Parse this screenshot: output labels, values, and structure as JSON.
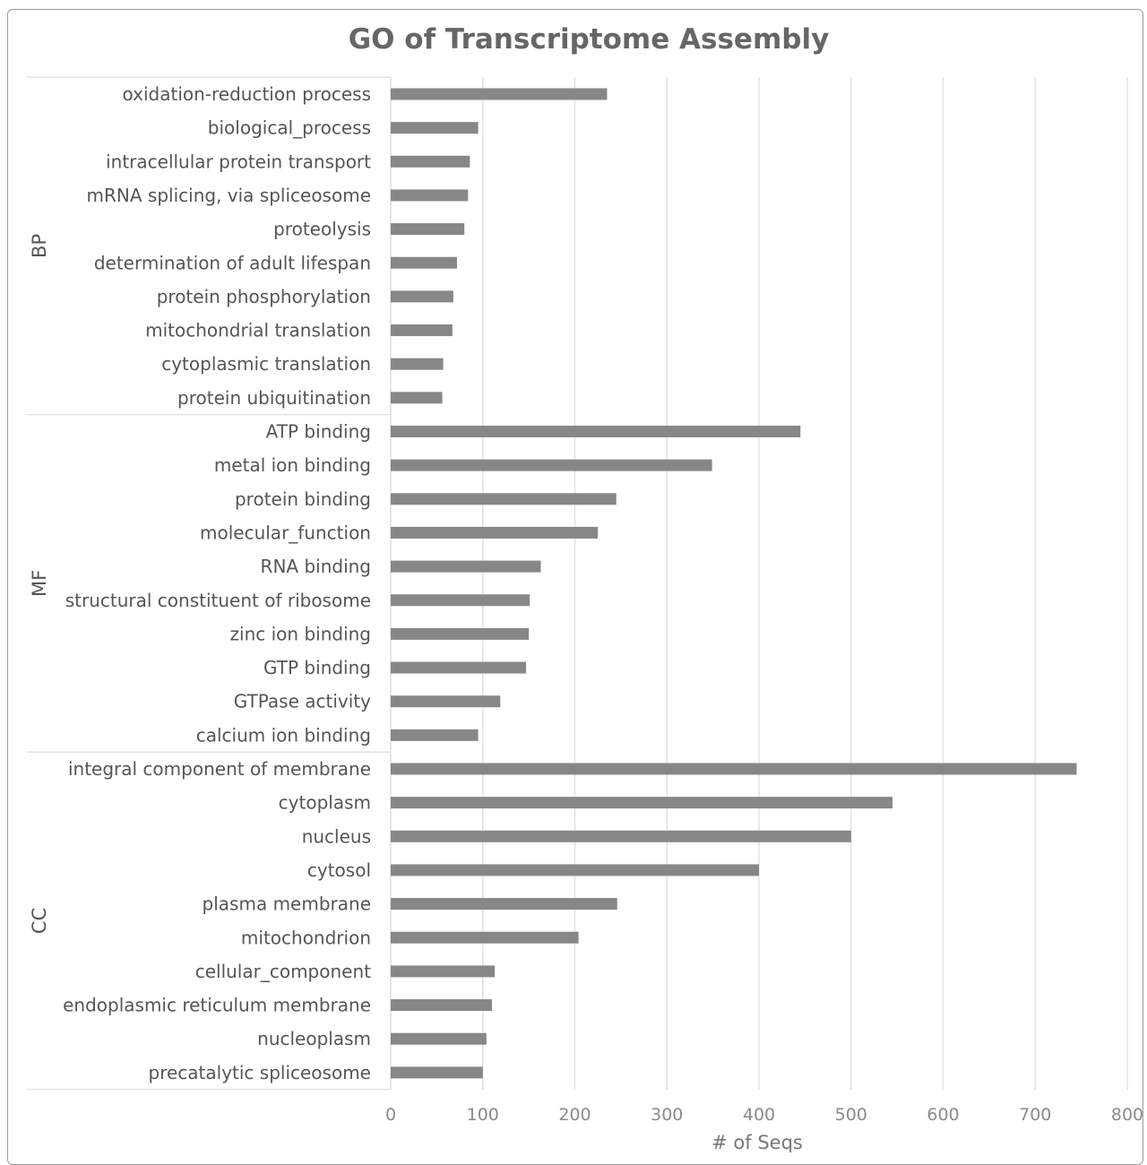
{
  "chart_data": {
    "type": "bar",
    "orientation": "horizontal",
    "title": "GO of Transcriptome Assembly",
    "xlabel": "# of Seqs",
    "xlim": [
      0,
      800
    ],
    "xticks": [
      0,
      100,
      200,
      300,
      400,
      500,
      600,
      700,
      800
    ],
    "grid": "vertical",
    "bar_color": "#878787",
    "groups": [
      {
        "name": "BP",
        "categories": [
          "oxidation-reduction process",
          "biological_process",
          "intracellular protein transport",
          "mRNA splicing, via spliceosome",
          "proteolysis",
          "determination of adult lifespan",
          "protein phosphorylation",
          "mitochondrial translation",
          "cytoplasmic translation",
          "protein ubiquitination"
        ],
        "values": [
          235,
          95,
          86,
          84,
          80,
          72,
          68,
          67,
          57,
          56
        ]
      },
      {
        "name": "MF",
        "categories": [
          "ATP binding",
          "metal ion binding",
          "protein binding",
          "molecular_function",
          "RNA binding",
          "structural constituent of ribosome",
          "zinc ion binding",
          "GTP binding",
          "GTPase activity",
          "calcium ion binding"
        ],
        "values": [
          445,
          349,
          245,
          225,
          163,
          151,
          150,
          147,
          119,
          95
        ]
      },
      {
        "name": "CC",
        "categories": [
          "integral component of membrane",
          "cytoplasm",
          "nucleus",
          "cytosol",
          "plasma membrane",
          "mitochondrion",
          "cellular_component",
          "endoplasmic reticulum membrane",
          "nucleoplasm",
          "precatalytic spliceosome"
        ],
        "values": [
          745,
          545,
          500,
          400,
          246,
          204,
          113,
          110,
          104,
          100
        ]
      }
    ]
  }
}
